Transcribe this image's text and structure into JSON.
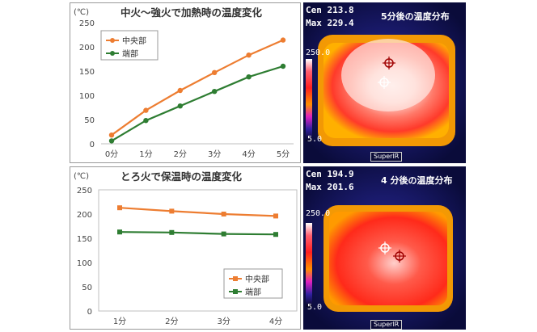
{
  "chart_data": [
    {
      "type": "line",
      "title": "中火～強火で加熱時の温度変化",
      "ylabel": "(℃)",
      "categories": [
        "0分",
        "1分",
        "2分",
        "3分",
        "4分",
        "5分"
      ],
      "ylim": [
        0,
        250
      ],
      "yticks": [
        0,
        50,
        100,
        150,
        200,
        250
      ],
      "grid": false,
      "legend": "top-left",
      "series": [
        {
          "name": "中央部",
          "color": "#ed7d31",
          "marker": "circle",
          "values": [
            18,
            69,
            110,
            147,
            183,
            214
          ]
        },
        {
          "name": "端部",
          "color": "#2e7d32",
          "marker": "circle",
          "values": [
            6,
            48,
            78,
            108,
            138,
            160
          ]
        }
      ]
    },
    {
      "type": "line",
      "title": "とろ火で保温時の温度変化",
      "ylabel": "(℃)",
      "categories": [
        "1分",
        "2分",
        "3分",
        "4分"
      ],
      "ylim": [
        0,
        250
      ],
      "yticks": [
        0,
        50,
        100,
        150,
        200,
        250
      ],
      "grid": false,
      "legend": "bottom-right",
      "series": [
        {
          "name": "中央部",
          "color": "#ed7d31",
          "marker": "square",
          "values": [
            213,
            206,
            200,
            196
          ]
        },
        {
          "name": "端部",
          "color": "#2e7d32",
          "marker": "square",
          "values": [
            163,
            162,
            159,
            158
          ]
        }
      ]
    }
  ],
  "thermal_images": [
    {
      "cen": "Cen  213.8",
      "max": "Max  229.4",
      "title": "5分後の温度分布",
      "scale_top": "250.0",
      "scale_bottom": "5.0",
      "brand": "SuperIR"
    },
    {
      "cen": "Cen  194.9",
      "max": "Max  201.6",
      "title": "4 分後の温度分布",
      "scale_top": "250.0",
      "scale_bottom": "5.0",
      "brand": "SuperIR"
    }
  ]
}
